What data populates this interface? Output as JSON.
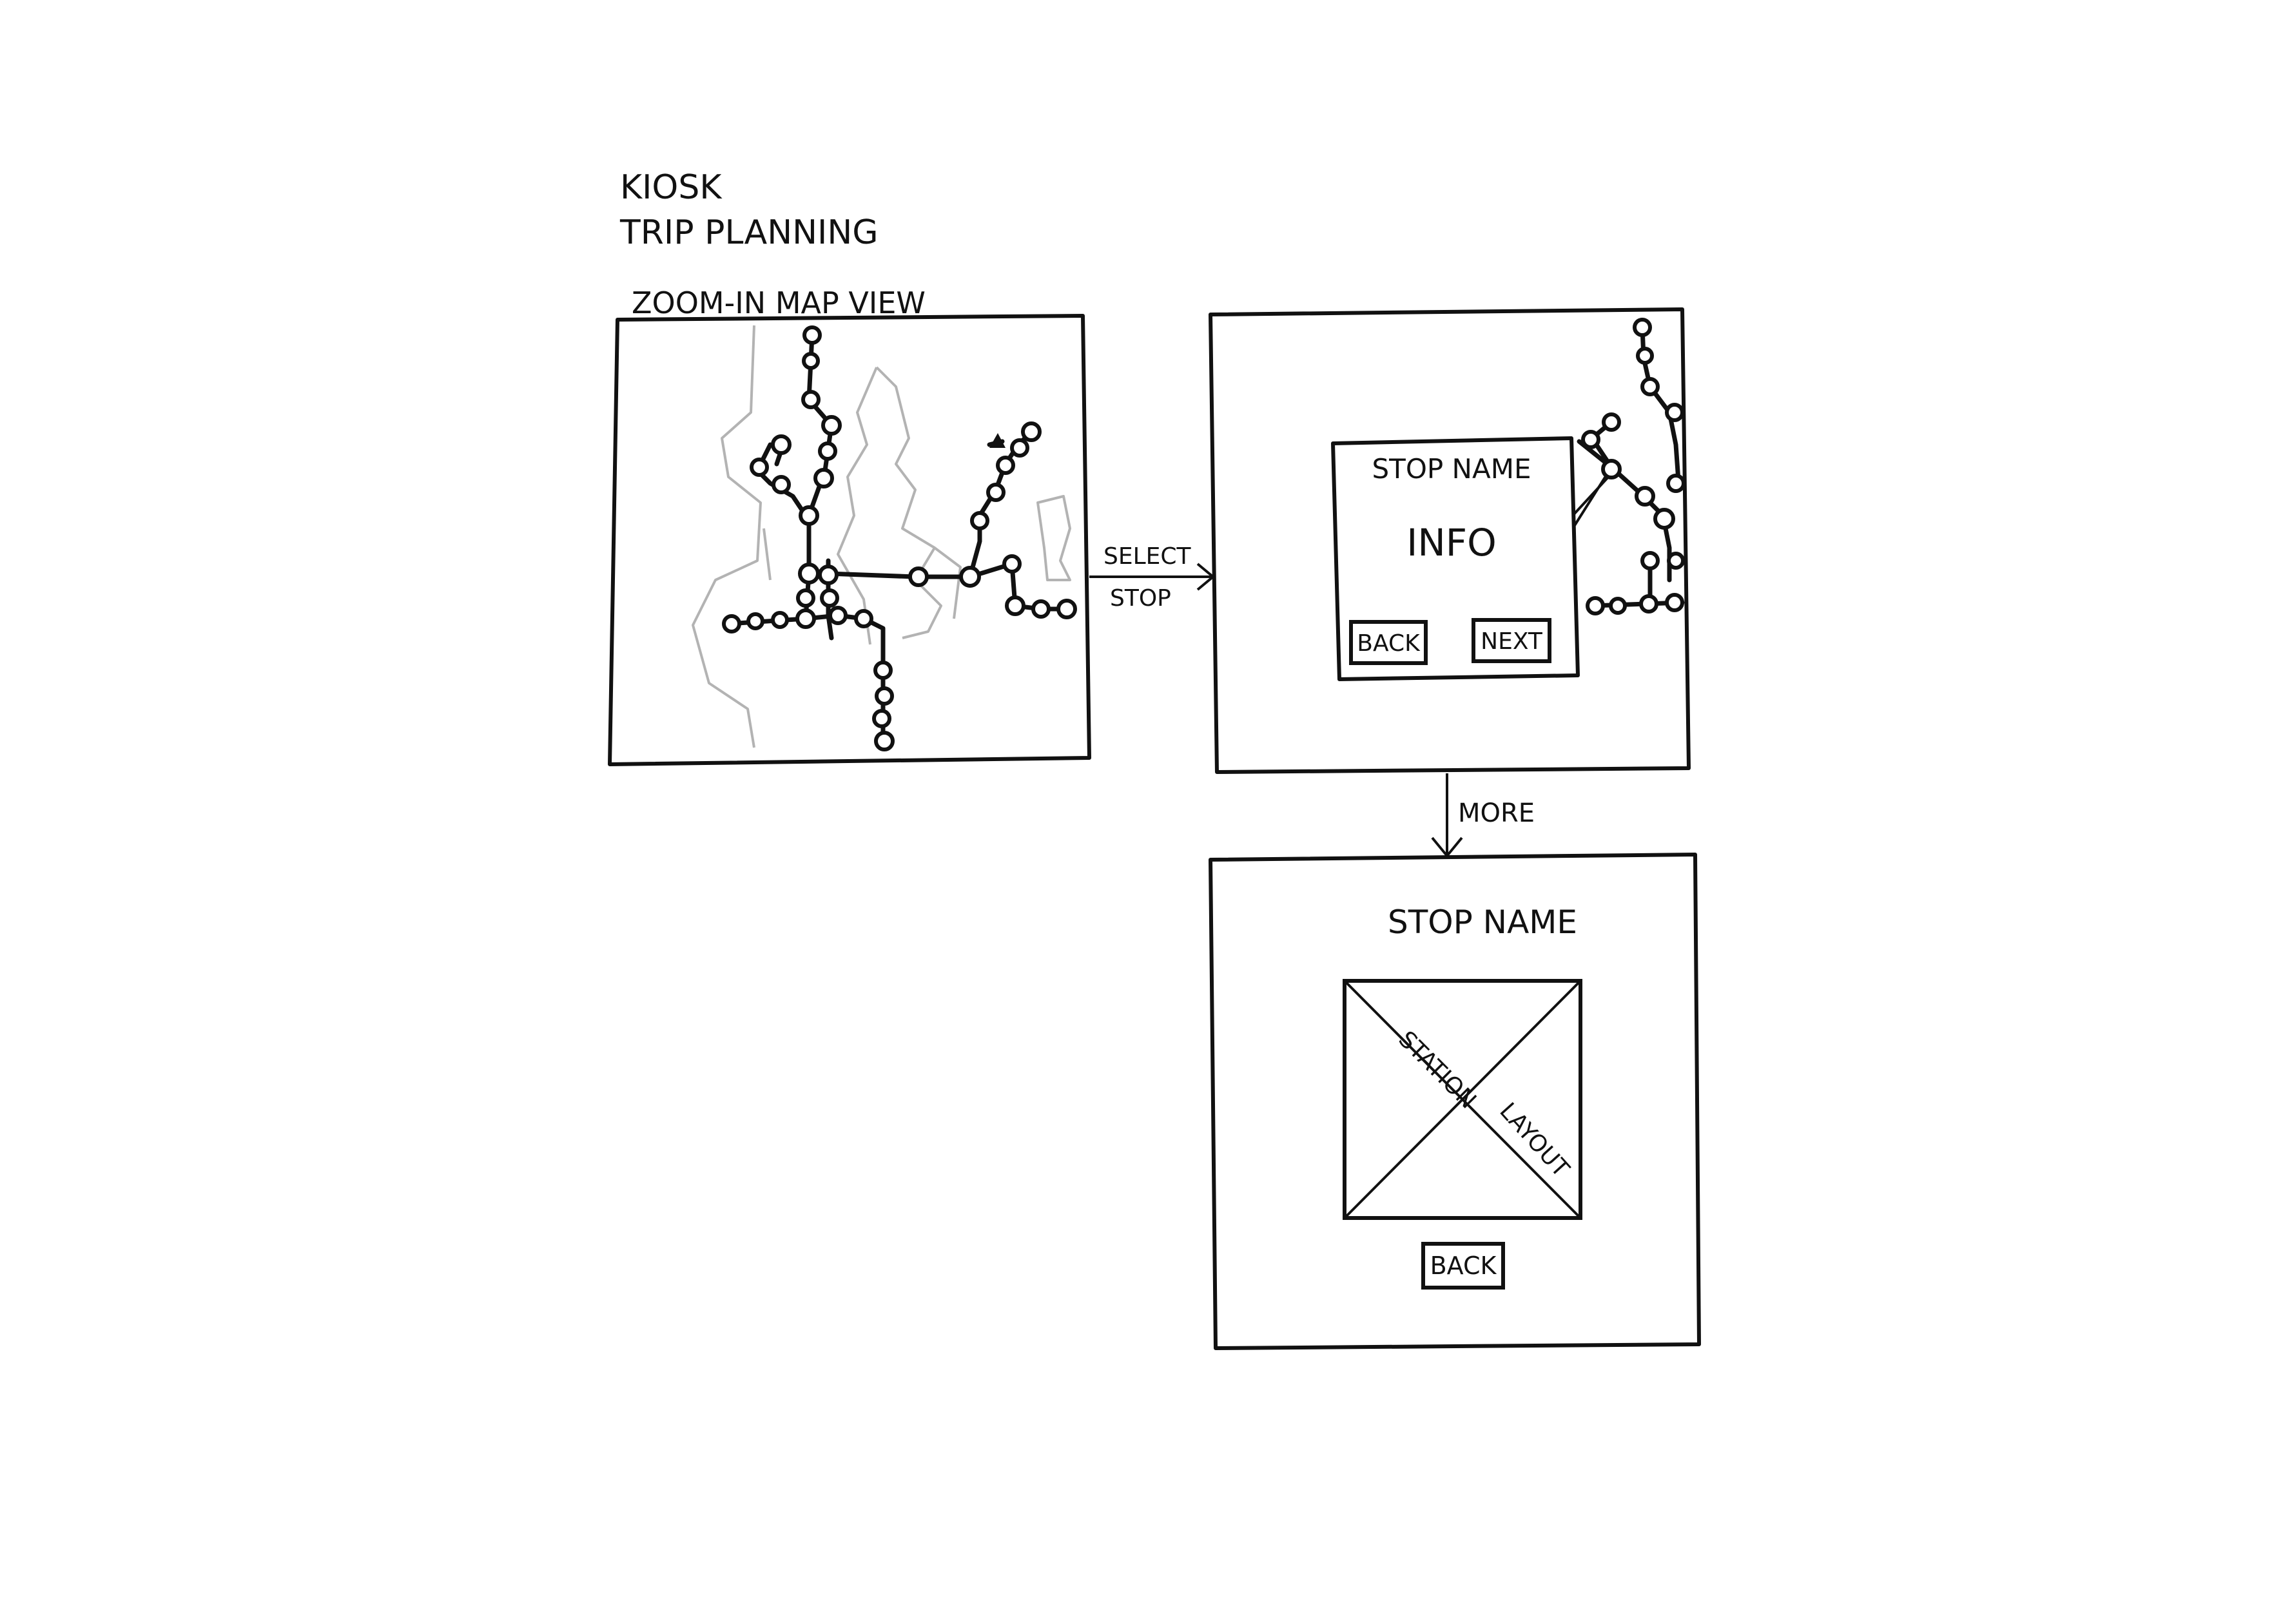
{
  "title_lines": [
    "KIOSK",
    "TRIP PLANNING"
  ],
  "screen1": {
    "label": "ZOOM-IN MAP VIEW"
  },
  "transition1": {
    "line1": "SELECT",
    "line2": "STOP"
  },
  "screen2": {
    "popup_title": "STOP NAME",
    "popup_body": "INFO",
    "back_button": "BACK",
    "next_button": "NEXT"
  },
  "transition2": {
    "label": "MORE"
  },
  "screen3": {
    "title": "STOP NAME",
    "placeholder_word1": "STATION",
    "placeholder_word2": "LAYOUT",
    "back_button": "BACK"
  }
}
